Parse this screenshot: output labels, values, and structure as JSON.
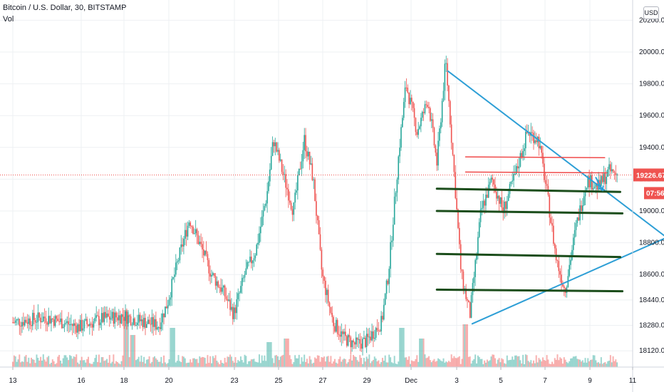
{
  "header": {
    "symbol_line": "Bitcoin / U.S. Dollar, 30, BITSTAMP",
    "volume_label": "Vol"
  },
  "currency_button": "USD",
  "chart_data": {
    "type": "candlestick",
    "title": "Bitcoin / U.S. Dollar, 30, BITSTAMP",
    "ylim": [
      18050,
      20300
    ],
    "y_ticks": [
      "20200.00",
      "20000.00",
      "19800.00",
      "19600.00",
      "19400.00",
      "19200.00",
      "19000.00",
      "18800.00",
      "18600.00",
      "18440.00",
      "18280.00",
      "18120.00"
    ],
    "x_ticks": [
      "13",
      "16",
      "18",
      "20",
      "23",
      "25",
      "27",
      "29",
      "Dec",
      "3",
      "5",
      "7",
      "9",
      "11"
    ],
    "last_price": "19226.67",
    "countdown": "07:56",
    "colors": {
      "up": "#26a69a",
      "down": "#ef5350",
      "trendline": "#2e9fd6",
      "resistance": "#f04a4a",
      "support": "#1b4d1b",
      "price_line": "#ef5350"
    },
    "price_path": [
      [
        13,
        18300
      ],
      [
        14.5,
        18330
      ],
      [
        16,
        18270
      ],
      [
        17,
        18320
      ],
      [
        18,
        18340
      ],
      [
        19,
        18300
      ],
      [
        19.6,
        18280
      ],
      [
        20,
        18420
      ],
      [
        20.5,
        18700
      ],
      [
        21,
        18950
      ],
      [
        21.5,
        18780
      ],
      [
        22,
        18600
      ],
      [
        22.5,
        18500
      ],
      [
        23,
        18350
      ],
      [
        23.5,
        18600
      ],
      [
        24,
        18750
      ],
      [
        24.5,
        19100
      ],
      [
        24.8,
        19450
      ],
      [
        25.2,
        19250
      ],
      [
        25.7,
        19000
      ],
      [
        26.2,
        19450
      ],
      [
        26.6,
        19200
      ],
      [
        27,
        18600
      ],
      [
        27.5,
        18300
      ],
      [
        28,
        18200
      ],
      [
        28.5,
        18160
      ],
      [
        29,
        18180
      ],
      [
        29.7,
        18300
      ],
      [
        30,
        18600
      ],
      [
        30.5,
        19400
      ],
      [
        30.8,
        19800
      ],
      [
        31.3,
        19500
      ],
      [
        31.8,
        19700
      ],
      [
        32.2,
        19300
      ],
      [
        32.6,
        19950
      ],
      [
        33,
        19200
      ],
      [
        33.3,
        18600
      ],
      [
        33.7,
        18350
      ],
      [
        34.2,
        19000
      ],
      [
        34.7,
        19200
      ],
      [
        35.2,
        19000
      ],
      [
        35.8,
        19250
      ],
      [
        36.3,
        19500
      ],
      [
        36.8,
        19450
      ],
      [
        37.2,
        19100
      ],
      [
        37.6,
        18700
      ],
      [
        38,
        18500
      ],
      [
        38.5,
        18900
      ],
      [
        39,
        19200
      ],
      [
        39.5,
        19150
      ],
      [
        40,
        19250
      ],
      [
        40.4,
        19226.67
      ]
    ],
    "volume_peaks": [
      [
        18.1,
        0.8
      ],
      [
        18.4,
        0.45
      ],
      [
        20.2,
        0.55
      ],
      [
        24.6,
        0.35
      ],
      [
        25.4,
        0.4
      ],
      [
        30.6,
        0.55
      ],
      [
        31.5,
        0.4
      ],
      [
        33.5,
        0.6
      ]
    ],
    "annotations": {
      "upper_trendline": {
        "from": [
          32.7,
          19880
        ],
        "to": [
          43.2,
          18770
        ]
      },
      "lower_trendline": {
        "from": [
          33.8,
          18290
        ],
        "to": [
          43.2,
          18870
        ]
      },
      "resistance_lines": [
        {
          "from": [
            33.5,
            19340
          ],
          "to": [
            39.8,
            19335
          ]
        },
        {
          "from": [
            33.5,
            19245
          ],
          "to": [
            39.9,
            19240
          ]
        }
      ],
      "support_lines": [
        {
          "from": [
            32.2,
            19140
          ],
          "to": [
            40.5,
            19120
          ]
        },
        {
          "from": [
            32.2,
            19000
          ],
          "to": [
            40.6,
            18985
          ]
        },
        {
          "from": [
            32.2,
            18730
          ],
          "to": [
            40.5,
            18710
          ]
        },
        {
          "from": [
            32.2,
            18505
          ],
          "to": [
            40.6,
            18495
          ]
        }
      ],
      "forecast_arrow": {
        "from": [
          39.4,
          19210
        ],
        "to": [
          39.7,
          19130
        ]
      }
    }
  }
}
